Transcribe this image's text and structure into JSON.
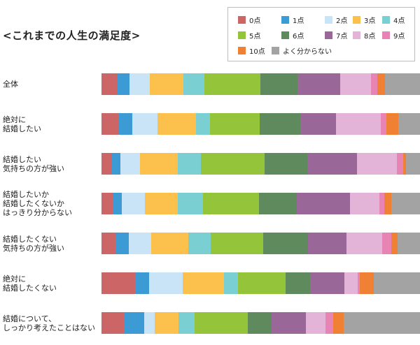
{
  "title": "<これまでの人生の満足度>",
  "colors": [
    "#cc6666",
    "#3c9bd4",
    "#c8e4f6",
    "#fcc04c",
    "#7acfd2",
    "#93c43a",
    "#5f8a5e",
    "#9a6898",
    "#e4b3d8",
    "#e884b4",
    "#f08134",
    "#a3a3a3"
  ],
  "chart_data": {
    "type": "bar",
    "orientation": "horizontal",
    "stacked": "percent",
    "title": "<これまでの人生の満足度>",
    "legend_position": "top-right",
    "xlim": [
      0,
      100
    ],
    "series_names": [
      "0点",
      "1点",
      "2点",
      "3点",
      "4点",
      "5点",
      "6点",
      "7点",
      "8点",
      "9点",
      "10点",
      "よく分からない"
    ],
    "categories": [
      "全体",
      "絶対に\n結婚したい",
      "結婚したい\n気持ちの方が強い",
      "結婚したいか\n結婚したくないか\nはっきり分からない",
      "結婚したくない\n気持ちの方が強い",
      "絶対に\n結婚したくない",
      "結婚について、\nしっかり考えたことはない"
    ],
    "values": [
      [
        4.8,
        3.9,
        6.4,
        10.6,
        6.5,
        17.6,
        11.7,
        13.5,
        9.7,
        2.0,
        2.3,
        11.0
      ],
      [
        5.5,
        4.1,
        8.0,
        12.1,
        4.4,
        15.6,
        12.8,
        11.2,
        13.9,
        1.9,
        3.6,
        6.9
      ],
      [
        3.0,
        3.0,
        6.0,
        12.0,
        7.2,
        20.0,
        13.5,
        15.5,
        12.5,
        2.0,
        0.8,
        4.5
      ],
      [
        3.7,
        2.8,
        7.5,
        10.6,
        8.1,
        18.0,
        12.1,
        17.2,
        9.4,
        1.5,
        2.2,
        9.3
      ],
      [
        4.5,
        4.3,
        7.0,
        11.8,
        7.3,
        16.7,
        14.2,
        12.2,
        11.5,
        2.8,
        2.0,
        7.2
      ],
      [
        10.6,
        4.3,
        10.6,
        13.0,
        4.3,
        15.1,
        7.7,
        10.6,
        4.3,
        0.7,
        4.3,
        14.5
      ],
      [
        7.1,
        6.2,
        3.4,
        7.4,
        5.2,
        16.6,
        7.4,
        10.9,
        6.2,
        2.3,
        3.4,
        23.9
      ]
    ]
  }
}
